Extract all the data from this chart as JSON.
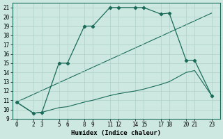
{
  "xlabel": "Humidex (Indice chaleur)",
  "bg_color": "#cce8e0",
  "grid_color": "#aed0c8",
  "line_color": "#1a6b5a",
  "line1_x": [
    0,
    2,
    3,
    5,
    6,
    8,
    9,
    11,
    12,
    14,
    15,
    17,
    18,
    20,
    21,
    23
  ],
  "line1_y": [
    10.8,
    9.6,
    9.7,
    15.0,
    15.0,
    19.0,
    19.0,
    21.0,
    21.0,
    21.0,
    21.0,
    20.3,
    20.4,
    15.3,
    15.3,
    11.5
  ],
  "line2_x": [
    0,
    2,
    3,
    5,
    6,
    8,
    9,
    11,
    12,
    14,
    15,
    17,
    18,
    20,
    21,
    23
  ],
  "line2_y": [
    10.8,
    9.6,
    9.7,
    10.2,
    10.3,
    10.8,
    11.0,
    11.5,
    11.7,
    12.0,
    12.2,
    12.7,
    13.0,
    14.0,
    14.2,
    11.5
  ],
  "line3_x": [
    0,
    23
  ],
  "line3_y": [
    10.8,
    20.4
  ],
  "xlim": [
    -0.5,
    24
  ],
  "ylim": [
    9,
    21.5
  ],
  "xtick_positions": [
    0,
    2,
    3,
    5,
    6,
    8,
    9,
    11,
    12,
    14,
    15,
    17,
    18,
    20,
    21,
    23
  ],
  "xtick_labels": [
    "0",
    "2",
    "3",
    "5",
    "6",
    "8",
    "9",
    "11",
    "12",
    "14",
    "15",
    "17",
    "18",
    "20",
    "21",
    "23"
  ],
  "ytick_positions": [
    9,
    10,
    11,
    12,
    13,
    14,
    15,
    16,
    17,
    18,
    19,
    20,
    21
  ],
  "ytick_labels": [
    "9",
    "10",
    "11",
    "12",
    "13",
    "14",
    "15",
    "16",
    "17",
    "18",
    "19",
    "20",
    "21"
  ],
  "tick_fontsize": 5.5,
  "label_fontsize": 6.5
}
